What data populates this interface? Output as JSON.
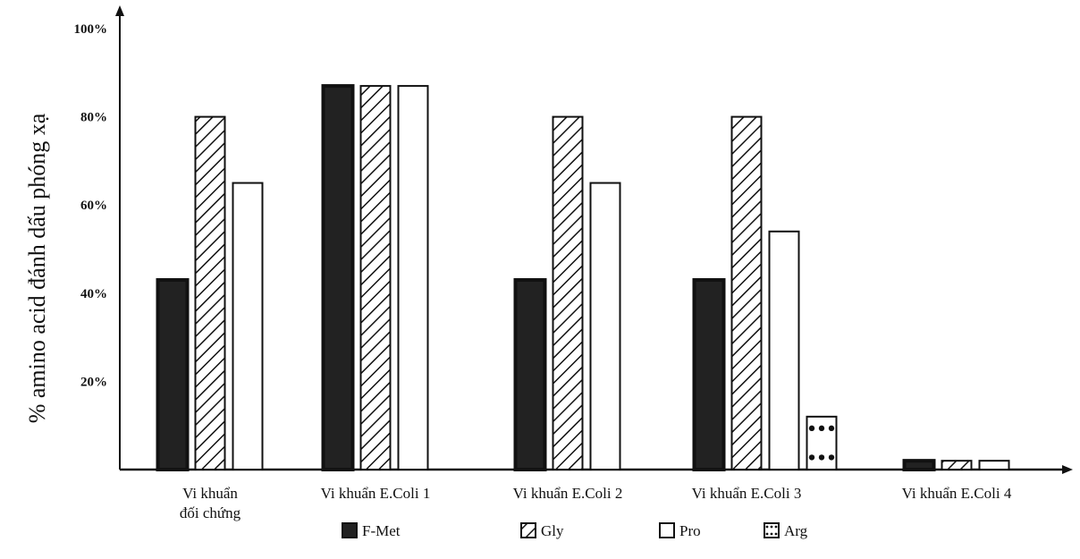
{
  "chart_data": {
    "type": "bar",
    "title": "",
    "xlabel": "",
    "ylabel": "% amino acid đánh dấu phóng xạ",
    "ylim": [
      0,
      100
    ],
    "yticks": [
      "20%",
      "40%",
      "60%",
      "80%",
      "100%"
    ],
    "ytick_values": [
      20,
      40,
      60,
      80,
      100
    ],
    "grid": false,
    "legend_position": "bottom",
    "categories": [
      [
        "Vi khuẩn",
        "đối chứng"
      ],
      [
        "Vi khuẩn E.Coli 1"
      ],
      [
        "Vi khuẩn E.Coli 2"
      ],
      [
        "Vi khuẩn E.Coli 3"
      ],
      [
        "Vi khuẩn E.Coli 4"
      ]
    ],
    "series": [
      {
        "name": "F-Met",
        "pattern": "solid-black",
        "values": [
          43,
          87,
          43,
          43,
          2
        ]
      },
      {
        "name": "Gly",
        "pattern": "diagonal-hatch",
        "values": [
          80,
          87,
          80,
          80,
          2
        ]
      },
      {
        "name": "Pro",
        "pattern": "white",
        "values": [
          65,
          87,
          65,
          54,
          2
        ]
      },
      {
        "name": "Arg",
        "pattern": "dots",
        "values": [
          null,
          null,
          null,
          12,
          null
        ]
      }
    ]
  }
}
